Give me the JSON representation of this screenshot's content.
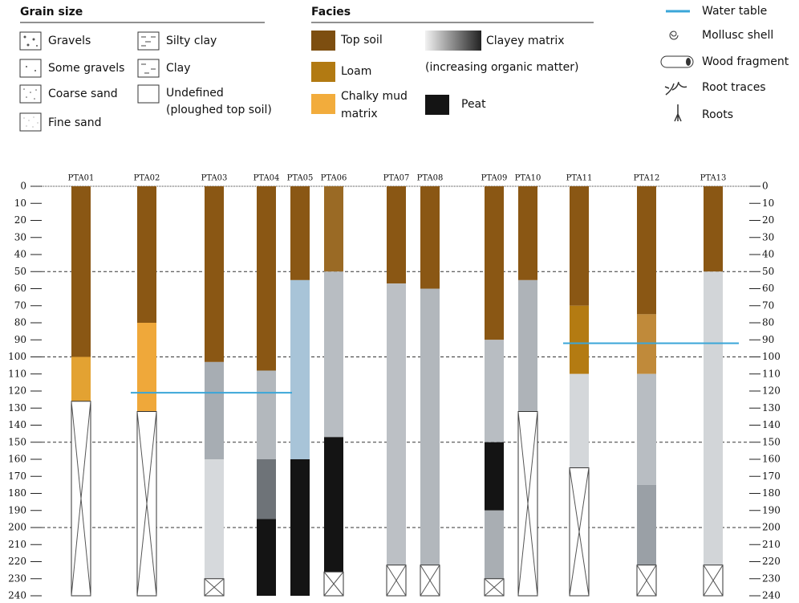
{
  "legend": {
    "grain_size": {
      "title": "Grain size",
      "items": [
        "Gravels",
        "Some gravels",
        "Coarse sand",
        "Fine sand",
        "Silty clay",
        "Clay"
      ],
      "undefined_lines": [
        "Undefined",
        "(ploughed top soil)"
      ]
    },
    "facies": {
      "title": "Facies",
      "items": [
        {
          "lines": [
            "Top soil"
          ],
          "color": "#7d4e10"
        },
        {
          "lines": [
            "Loam"
          ],
          "color": "#b27a12"
        },
        {
          "lines": [
            "Chalky mud",
            "matrix"
          ],
          "color": "#f2ac3c"
        },
        {
          "lines": [
            "Peat"
          ],
          "color": "#141414"
        }
      ],
      "clayey": "Clayey matrix",
      "clayey_note": "(increasing organic matter)"
    },
    "symbols": [
      "Water table",
      "Mollusc shell",
      "Wood fragment",
      "Root traces",
      "Roots"
    ]
  },
  "depth_axis": {
    "ylim": [
      0,
      240
    ],
    "yticks": [
      0,
      10,
      20,
      30,
      40,
      50,
      60,
      70,
      80,
      90,
      100,
      110,
      120,
      130,
      140,
      150,
      160,
      170,
      180,
      190,
      200,
      210,
      220,
      230,
      240
    ],
    "guides": [
      50,
      100,
      150,
      200
    ],
    "water_color": "#3aa6d8"
  },
  "columns": [
    {
      "label": "PTA01",
      "layers": [
        {
          "top": 0,
          "bottom": 100,
          "color": "#8a5714"
        },
        {
          "top": 100,
          "bottom": 126,
          "color": "#e3a232"
        },
        {
          "top": 126,
          "bottom": 240,
          "color": "#ffffff",
          "crossed": true
        }
      ]
    },
    {
      "label": "PTA02",
      "water_table": 121,
      "layers": [
        {
          "top": 0,
          "bottom": 80,
          "color": "#8a5714"
        },
        {
          "top": 80,
          "bottom": 132,
          "color": "#efa83a"
        },
        {
          "top": 132,
          "bottom": 240,
          "color": "#ffffff",
          "crossed": true
        }
      ]
    },
    {
      "label": "PTA03",
      "water_table": 121,
      "layers": [
        {
          "top": 0,
          "bottom": 103,
          "color": "#8a5714"
        },
        {
          "top": 103,
          "bottom": 160,
          "color": "#a7adb3"
        },
        {
          "top": 160,
          "bottom": 230,
          "color": "#d6d9dc"
        },
        {
          "top": 230,
          "bottom": 240,
          "color": "#ffffff",
          "crossed": true
        }
      ]
    },
    {
      "label": "PTA04",
      "water_table": 121,
      "layers": [
        {
          "top": 0,
          "bottom": 108,
          "color": "#8a5714"
        },
        {
          "top": 108,
          "bottom": 160,
          "color": "#b3b8bd"
        },
        {
          "top": 160,
          "bottom": 195,
          "color": "#6e7378"
        },
        {
          "top": 195,
          "bottom": 240,
          "color": "#141414"
        }
      ]
    },
    {
      "label": "PTA05",
      "layers": [
        {
          "top": 0,
          "bottom": 55,
          "color": "#8a5714"
        },
        {
          "top": 55,
          "bottom": 160,
          "color": "#a8c4d8"
        },
        {
          "top": 160,
          "bottom": 240,
          "color": "#141414"
        }
      ]
    },
    {
      "label": "PTA06",
      "layers": [
        {
          "top": 0,
          "bottom": 50,
          "color": "#9a6a25"
        },
        {
          "top": 50,
          "bottom": 147,
          "color": "#b8bdc2"
        },
        {
          "top": 147,
          "bottom": 226,
          "color": "#141414"
        },
        {
          "top": 226,
          "bottom": 240,
          "color": "#ffffff",
          "crossed": true
        }
      ]
    },
    {
      "label": "PTA07",
      "layers": [
        {
          "top": 0,
          "bottom": 57,
          "color": "#8a5714"
        },
        {
          "top": 57,
          "bottom": 222,
          "color": "#bcc0c5"
        },
        {
          "top": 222,
          "bottom": 240,
          "color": "#ffffff",
          "crossed": true
        }
      ]
    },
    {
      "label": "PTA08",
      "layers": [
        {
          "top": 0,
          "bottom": 60,
          "color": "#8a5714"
        },
        {
          "top": 60,
          "bottom": 222,
          "color": "#b2b7bc"
        },
        {
          "top": 222,
          "bottom": 240,
          "color": "#ffffff",
          "crossed": true
        }
      ]
    },
    {
      "label": "PTA09",
      "layers": [
        {
          "top": 0,
          "bottom": 90,
          "color": "#8a5714"
        },
        {
          "top": 90,
          "bottom": 150,
          "color": "#b8bdc2"
        },
        {
          "top": 150,
          "bottom": 190,
          "color": "#141414"
        },
        {
          "top": 190,
          "bottom": 230,
          "color": "#a9aeb3"
        },
        {
          "top": 230,
          "bottom": 240,
          "color": "#ffffff",
          "crossed": true
        }
      ]
    },
    {
      "label": "PTA10",
      "layers": [
        {
          "top": 0,
          "bottom": 55,
          "color": "#8a5714"
        },
        {
          "top": 55,
          "bottom": 132,
          "color": "#aeb3b8"
        },
        {
          "top": 132,
          "bottom": 240,
          "color": "#ffffff",
          "crossed": true
        }
      ]
    },
    {
      "label": "PTA11",
      "water_table": 92,
      "layers": [
        {
          "top": 0,
          "bottom": 70,
          "color": "#8a5714"
        },
        {
          "top": 70,
          "bottom": 110,
          "color": "#b47b12"
        },
        {
          "top": 110,
          "bottom": 165,
          "color": "#d4d7da"
        },
        {
          "top": 165,
          "bottom": 240,
          "color": "#ffffff",
          "crossed": true
        }
      ]
    },
    {
      "label": "PTA12",
      "water_table": 92,
      "layers": [
        {
          "top": 0,
          "bottom": 75,
          "color": "#8a5714"
        },
        {
          "top": 75,
          "bottom": 110,
          "color": "#c08a3a"
        },
        {
          "top": 110,
          "bottom": 175,
          "color": "#b8bdc2"
        },
        {
          "top": 175,
          "bottom": 222,
          "color": "#9aa0a6"
        },
        {
          "top": 222,
          "bottom": 240,
          "color": "#ffffff",
          "crossed": true
        }
      ]
    },
    {
      "label": "PTA13",
      "water_table": 92,
      "layers": [
        {
          "top": 0,
          "bottom": 50,
          "color": "#8a5714"
        },
        {
          "top": 50,
          "bottom": 222,
          "color": "#d2d5d8"
        },
        {
          "top": 222,
          "bottom": 240,
          "color": "#ffffff",
          "crossed": true
        }
      ]
    }
  ]
}
